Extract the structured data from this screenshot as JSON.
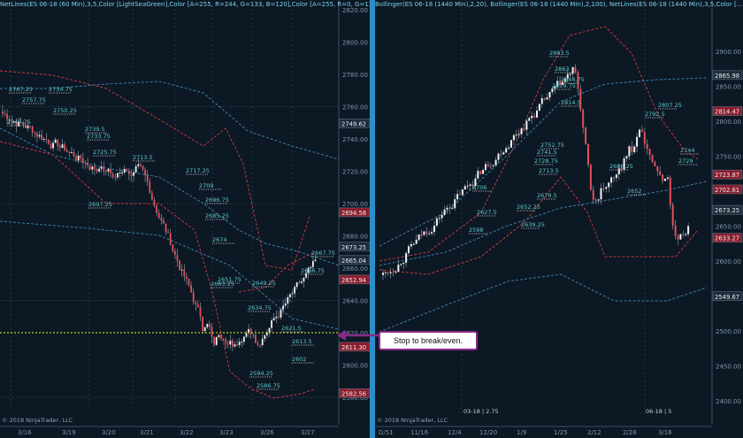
{
  "left_chart": {
    "title": "NetLines(ES 06-18 (60 Min),3,5,Color [LightSeaGreen],Color [A=255, R=244, G=133, B=120],Color [A=255, R=0, G=131...",
    "copyright": "© 2018 NinjaTrader, LLC",
    "price_axis": [
      "2820.00",
      "2800.00",
      "2780.00",
      "2760.00",
      "2740.00",
      "2720.00",
      "2700.00",
      "2680.00",
      "2660.00",
      "2640.00",
      "2620.00",
      "2600.00",
      "2580.00"
    ],
    "price_badges": [
      "2749.62",
      "2694.58",
      "2673.25",
      "2665.04",
      "2652.94",
      "2611.30",
      "2582.56"
    ],
    "date_axis": [
      "3/16",
      "3/19",
      "3/20",
      "3/21",
      "3/22",
      "3/23",
      "3/26",
      "3/27"
    ],
    "level_labels": [
      "2767.25",
      "2757.75",
      "2754.75",
      "2750.25",
      "2745.75",
      "2739.5",
      "2733.75",
      "2725.75",
      "2713.5",
      "2717.25",
      "2709",
      "2697.25",
      "2696.75",
      "2685.25",
      "2674",
      "2663.25",
      "2651.75",
      "2649.25",
      "2634.75",
      "2621.5",
      "2613.5",
      "2602",
      "2594.25",
      "2586.75",
      "2667.75",
      "2656.75"
    ]
  },
  "right_chart": {
    "title": "Bollinger(ES 06-18 (1440 Min),2,20), Bollinger(ES 06-18 (1440 Min),2,100), NetLines(ES 06-18 (1440 Min),3,5,Color [...",
    "copyright": "© 2018 NinjaTrader, LLC",
    "price_axis": [
      "2900.00",
      "2850.00",
      "2800.00",
      "2750.00",
      "2700.00",
      "2650.00",
      "2600.00",
      "2550.00",
      "2500.00",
      "2450.00",
      "2400.00"
    ],
    "price_badges": [
      "2865.98",
      "2814.47",
      "2723.87",
      "2702.61",
      "2673.25",
      "2633.27",
      "2549.67"
    ],
    "date_axis": [
      "D/51",
      "11/16",
      "12/4",
      "12/20",
      "1/9",
      "1/25",
      "2/12",
      "2/28",
      "3/16"
    ],
    "markers": [
      "03-18 | 2.75",
      "06-18 | 5"
    ],
    "level_labels": [
      "2883.5",
      "2863",
      "2844.75",
      "2839.75",
      "2814.5",
      "2807.25",
      "2792.5",
      "2752.75",
      "2741.5",
      "2728.75",
      "2713.5",
      "2679.5",
      "2652.25",
      "2639.25",
      "2744",
      "2729",
      "2686.25",
      "2652",
      "2706",
      "2627.5",
      "2598"
    ]
  },
  "annotation": {
    "text": "Stop to break/even."
  },
  "colors": {
    "background": "#0c1824",
    "divider": "#2b8fc9",
    "up_candle": "#f2f2f2",
    "down_candle": "#e0505a",
    "band_red": "#c0393b",
    "band_blue": "#3a7ea8",
    "stop_line": "#b8d420",
    "callout_border": "#8a2a8a"
  }
}
